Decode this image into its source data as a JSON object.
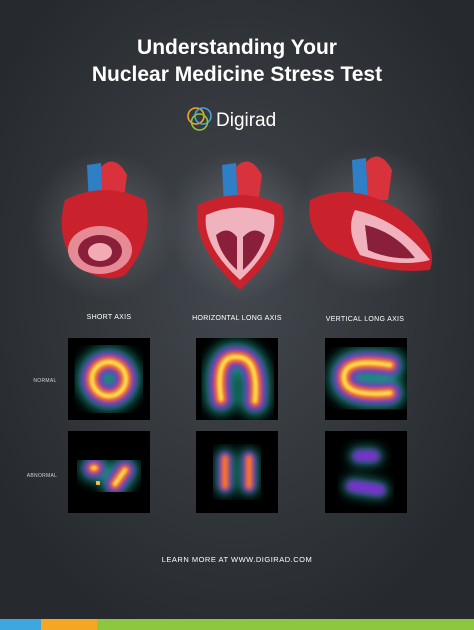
{
  "header": {
    "title": {
      "lines": [
        "Understanding Your",
        "Nuclear Medicine Stress Test"
      ]
    },
    "brand": "Digirad"
  },
  "columns": [
    "SHORT AXIS",
    "HORIZONTAL LONG AXIS",
    "VERTICAL LONG AXIS"
  ],
  "rows": [
    "NORMAL",
    "ABNORMAL"
  ],
  "footer": "LEARN MORE  AT WWW.DIGIRAD.COM"
}
